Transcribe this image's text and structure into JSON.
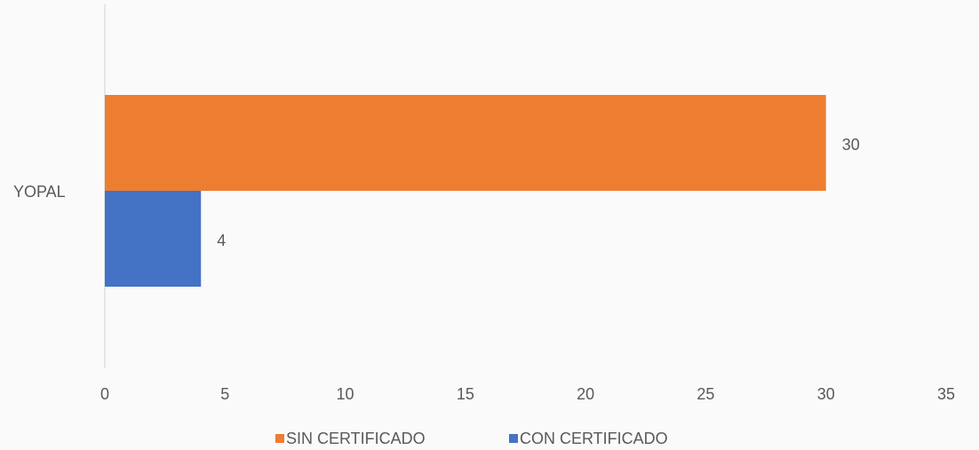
{
  "chart_data": {
    "type": "hbar",
    "categories": [
      "YOPAL"
    ],
    "series": [
      {
        "name": "SIN CERTIFICADO",
        "color": "#ed7d31",
        "values": [
          30
        ]
      },
      {
        "name": "CON CERTIFICADO",
        "color": "#4472c4",
        "values": [
          4
        ]
      }
    ],
    "xlim": [
      0,
      35
    ],
    "xticks": [
      0,
      5,
      10,
      15,
      20,
      25,
      30,
      35
    ],
    "grid": false,
    "legend": "bottom"
  }
}
